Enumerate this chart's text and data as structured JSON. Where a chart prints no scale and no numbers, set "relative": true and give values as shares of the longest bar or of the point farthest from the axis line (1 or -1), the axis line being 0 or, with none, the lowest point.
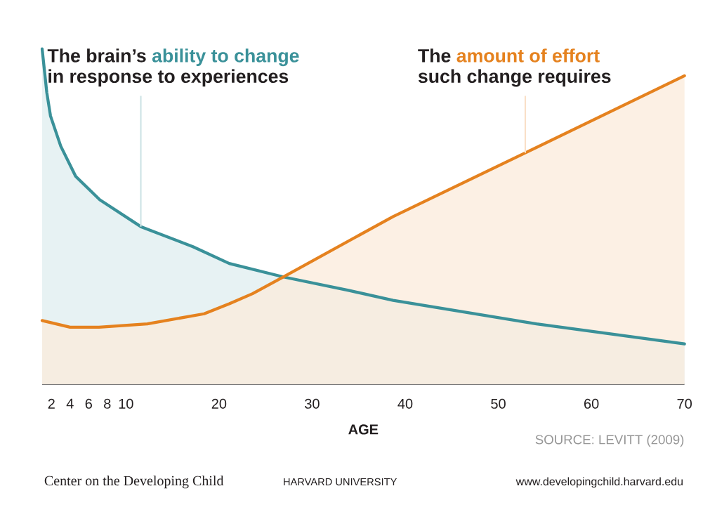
{
  "chart_data": {
    "type": "area",
    "relative": true,
    "xlabel": "AGE",
    "xlim": [
      1,
      70
    ],
    "xticks": [
      2,
      4,
      6,
      8,
      10,
      20,
      30,
      40,
      50,
      60,
      70
    ],
    "series": [
      {
        "name": "ability to change",
        "color": "#3a9199",
        "x": [
          1,
          1.5,
          1.9,
          3,
          4.6,
          7.2,
          11.6,
          17.2,
          21.1,
          26.9,
          33.9,
          38.7,
          54.1,
          70
        ],
        "values": [
          1.0,
          0.87,
          0.8,
          0.71,
          0.62,
          0.55,
          0.47,
          0.41,
          0.36,
          0.32,
          0.28,
          0.25,
          0.18,
          0.12
        ]
      },
      {
        "name": "amount of effort",
        "color": "#e5821f",
        "x": [
          1,
          4,
          7.1,
          12.3,
          18.4,
          21.1,
          23.6,
          26.9,
          38.7,
          52.9,
          70
        ],
        "values": [
          0.19,
          0.17,
          0.17,
          0.18,
          0.21,
          0.24,
          0.27,
          0.32,
          0.5,
          0.69,
          0.92
        ]
      }
    ],
    "annotations": [
      "The brain’s",
      {
        "text": "in response to experiences",
        "x": 11.6,
        "y": 0.47
      },
      "The",
      {
        "text": "such change requires",
        "x": 52.9,
        "y": 0.69
      },
      "SOURCE: LEVITT (2009)",
      "Center on the Developing Child",
      "HARVARD UNIVERSITY",
      "www.developingchild.harvard.edu"
    ]
  }
}
